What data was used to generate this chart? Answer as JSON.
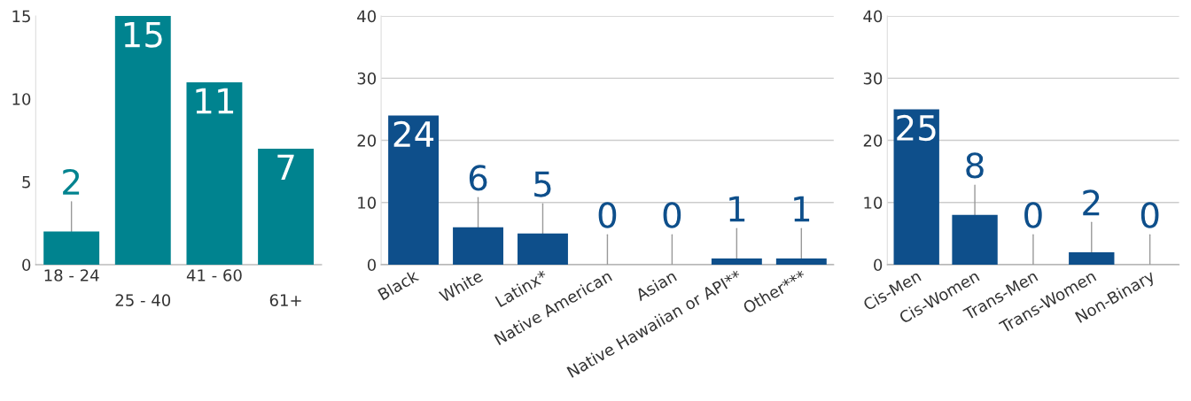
{
  "chart_data": [
    {
      "type": "bar",
      "categories": [
        "18 - 24",
        "25 - 40",
        "41 - 60",
        "61+"
      ],
      "values": [
        2,
        15,
        11,
        7
      ],
      "color": "#00838f",
      "ylim": [
        0,
        15
      ],
      "yticks": [
        0,
        5,
        10,
        15
      ],
      "grid": false,
      "data_labels": true
    },
    {
      "type": "bar",
      "categories": [
        "Black",
        "White",
        "Latinx*",
        "Native American",
        "Asian",
        "Native Hawaiian or API**",
        "Other***"
      ],
      "values": [
        24,
        6,
        5,
        0,
        0,
        1,
        1
      ],
      "color": "#0e4f8b",
      "ylim": [
        0,
        40
      ],
      "yticks": [
        0,
        10,
        20,
        30,
        40
      ],
      "grid": "y",
      "data_labels": true
    },
    {
      "type": "bar",
      "categories": [
        "Cis-Men",
        "Cis-Women",
        "Trans-Men",
        "Trans-Women",
        "Non-Binary"
      ],
      "values": [
        25,
        8,
        0,
        2,
        0
      ],
      "color": "#0e4f8b",
      "ylim": [
        0,
        40
      ],
      "yticks": [
        0,
        10,
        20,
        30,
        40
      ],
      "grid": "y",
      "data_labels": true
    }
  ]
}
